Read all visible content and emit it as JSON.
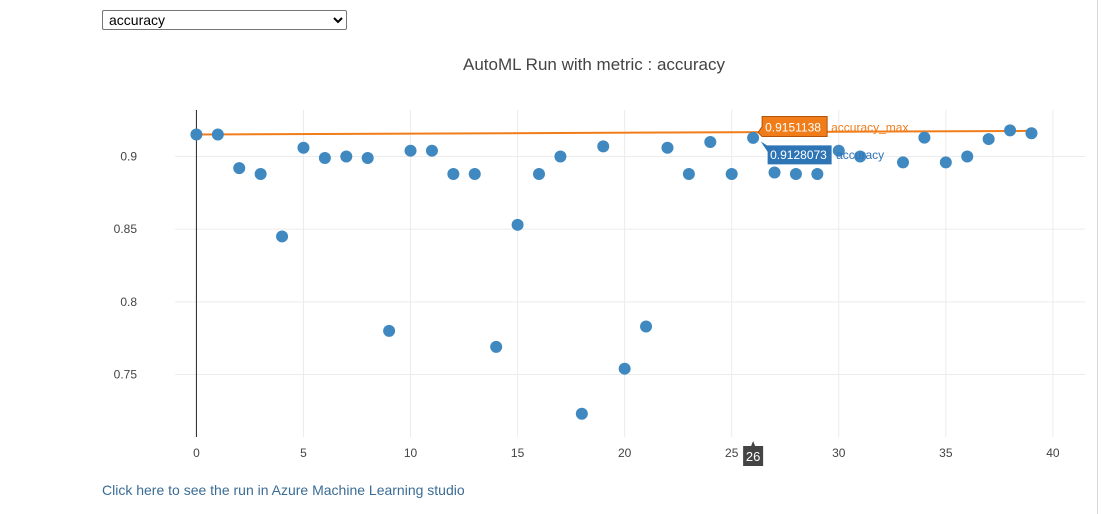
{
  "metric_select": {
    "value": "accuracy",
    "options": [
      "accuracy"
    ]
  },
  "link": {
    "label": "Click here to see the run in Azure Machine Learning studio"
  },
  "chart_data": {
    "type": "scatter",
    "title": "AutoML Run with metric : accuracy",
    "xlabel": "",
    "ylabel": "",
    "xlim": [
      -1,
      41.5
    ],
    "ylim": [
      0.707,
      0.932
    ],
    "x_ticks": [
      "0",
      "5",
      "10",
      "15",
      "20",
      "25",
      "30",
      "35",
      "40"
    ],
    "y_ticks": [
      "0.75",
      "0.8",
      "0.85",
      "0.9"
    ],
    "grid": true,
    "series": [
      {
        "name": "accuracy",
        "color": "#3f88c0",
        "x": [
          0,
          1,
          2,
          3,
          4,
          5,
          6,
          7,
          8,
          9,
          10,
          11,
          12,
          13,
          14,
          15,
          16,
          17,
          18,
          19,
          20,
          21,
          22,
          23,
          24,
          25,
          26,
          27,
          28,
          29,
          30,
          31,
          33,
          34,
          35,
          36,
          37,
          38,
          39
        ],
        "y": [
          0.9151138,
          0.9151138,
          0.892,
          0.888,
          0.845,
          0.906,
          0.899,
          0.9,
          0.899,
          0.78,
          0.904,
          0.904,
          0.888,
          0.888,
          0.769,
          0.853,
          0.888,
          0.9,
          0.723,
          0.907,
          0.754,
          0.783,
          0.906,
          0.888,
          0.91,
          0.888,
          0.9128073,
          0.889,
          0.888,
          0.888,
          0.904,
          0.9,
          0.896,
          0.913,
          0.896,
          0.9,
          0.912,
          0.918,
          0.916
        ]
      },
      {
        "name": "accuracy_max",
        "color": "#f07d1a",
        "x": [
          0,
          39
        ],
        "y": [
          0.9151138,
          0.9176
        ]
      }
    ],
    "hover": {
      "x_label": "26",
      "accuracy_max": {
        "value": "0.9151138",
        "name": "accuracy_max"
      },
      "accuracy": {
        "value": "0.9128073",
        "name": "accuracy"
      }
    }
  }
}
